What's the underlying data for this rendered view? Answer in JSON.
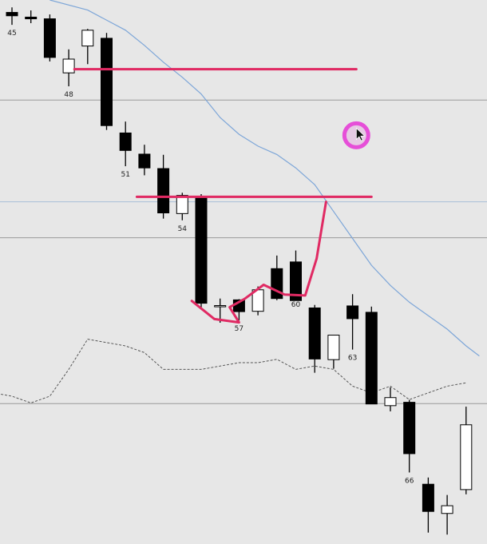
{
  "chart_data": {
    "type": "candlestick",
    "title": "",
    "xlabel": "",
    "ylabel": "",
    "grid": false,
    "price_range": [
      0,
      100
    ],
    "bar_labels": [
      {
        "bar": 45,
        "text": "45"
      },
      {
        "bar": 48,
        "text": "48"
      },
      {
        "bar": 51,
        "text": "51"
      },
      {
        "bar": 54,
        "text": "54"
      },
      {
        "bar": 57,
        "text": "57"
      },
      {
        "bar": 60,
        "text": "60"
      },
      {
        "bar": 63,
        "text": "63"
      },
      {
        "bar": 66,
        "text": "66"
      }
    ],
    "candles": [
      {
        "bar": 45,
        "open": 96.3,
        "high": 97.8,
        "low": 92.6,
        "close": 95.3
      },
      {
        "bar": 46,
        "open": 94.9,
        "high": 96.9,
        "low": 93.1,
        "close": 94.4
      },
      {
        "bar": 47,
        "open": 94.4,
        "high": 95.7,
        "low": 81.7,
        "close": 82.9
      },
      {
        "bar": 48,
        "open": 78.3,
        "high": 85.3,
        "low": 74.3,
        "close": 82.4
      },
      {
        "bar": 49,
        "open": 86.3,
        "high": 91.4,
        "low": 80.9,
        "close": 91.0
      },
      {
        "bar": 50,
        "open": 88.6,
        "high": 90.2,
        "low": 61.3,
        "close": 62.6
      },
      {
        "bar": 51,
        "open": 60.4,
        "high": 63.8,
        "low": 50.5,
        "close": 55.2
      },
      {
        "bar": 52,
        "open": 54.1,
        "high": 56.9,
        "low": 47.8,
        "close": 50.0
      },
      {
        "bar": 53,
        "open": 49.8,
        "high": 53.9,
        "low": 34.9,
        "close": 36.6
      },
      {
        "bar": 54,
        "open": 36.4,
        "high": 42.6,
        "low": 34.4,
        "close": 41.8
      },
      {
        "bar": 55,
        "open": 41.1,
        "high": 42.2,
        "low": 8.5,
        "close": 9.7
      },
      {
        "bar": 56,
        "open": 9.0,
        "high": 11.1,
        "low": 3.9,
        "close": 9.0
      },
      {
        "bar": 57,
        "open": 10.7,
        "high": 10.9,
        "low": 4.6,
        "close": 7.2
      },
      {
        "bar": 58,
        "open": 7.3,
        "high": 14.7,
        "low": 6.1,
        "close": 13.7
      },
      {
        "bar": 59,
        "open": 20.0,
        "high": 23.9,
        "low": 10.6,
        "close": 11.1
      },
      {
        "bar": 60,
        "open": 22.0,
        "high": 25.4,
        "low": 11.8,
        "close": 10.5
      },
      {
        "bar": 61,
        "open": 8.3,
        "high": 9.2,
        "low": -11.0,
        "close": -6.9
      },
      {
        "bar": 62,
        "open": -7.1,
        "high": -0.4,
        "low": -9.8,
        "close": 0.2
      },
      {
        "bar": 63,
        "open": 8.9,
        "high": 12.4,
        "low": -4.1,
        "close": 5.1
      },
      {
        "bar": 64,
        "open": 7.0,
        "high": 8.7,
        "low": -19.5,
        "close": -20.3
      },
      {
        "bar": 65,
        "open": -20.8,
        "high": -15.3,
        "low": -22.5,
        "close": -18.4
      },
      {
        "bar": 66,
        "open": -19.8,
        "high": -19.1,
        "low": -40.7,
        "close": -35.1
      },
      {
        "bar": 67,
        "open": -44.2,
        "high": -42.2,
        "low": -58.6,
        "close": -52.3
      },
      {
        "bar": 68,
        "open": -52.9,
        "high": -47.4,
        "low": -59.2,
        "close": -50.6
      },
      {
        "bar": 69,
        "open": -45.8,
        "high": -21.1,
        "low": -47.2,
        "close": -26.5
      }
    ],
    "series": [
      {
        "kind": "moving-average",
        "color": "#7da6d8",
        "points": [
          [
            47,
            100
          ],
          [
            49,
            97
          ],
          [
            51,
            91
          ],
          [
            52,
            86.5
          ],
          [
            53,
            81.5
          ],
          [
            54,
            77
          ],
          [
            55,
            72
          ],
          [
            56,
            65
          ],
          [
            57,
            60
          ],
          [
            58,
            56.5
          ],
          [
            59,
            54
          ],
          [
            60,
            50
          ],
          [
            61,
            45
          ],
          [
            62,
            37
          ],
          [
            63,
            29
          ],
          [
            64,
            21
          ],
          [
            65,
            15
          ],
          [
            66,
            10
          ],
          [
            67,
            6
          ],
          [
            68,
            2
          ],
          [
            69,
            -3
          ],
          [
            69.7,
            -6
          ]
        ]
      },
      {
        "kind": "indicator",
        "color": "#555555",
        "points": [
          [
            44,
            -17
          ],
          [
            45,
            -18
          ],
          [
            46,
            -20
          ],
          [
            47,
            -18
          ],
          [
            48,
            -10
          ],
          [
            49,
            -1
          ],
          [
            50,
            -2
          ],
          [
            51,
            -3
          ],
          [
            52,
            -5
          ],
          [
            53,
            -10
          ],
          [
            54,
            -10
          ],
          [
            55,
            -10
          ],
          [
            56,
            -9
          ],
          [
            57,
            -8
          ],
          [
            58,
            -8
          ],
          [
            59,
            -7
          ],
          [
            60,
            -10
          ],
          [
            61,
            -9
          ],
          [
            62,
            -10
          ],
          [
            63,
            -15
          ],
          [
            64,
            -17
          ],
          [
            65,
            -15
          ],
          [
            66,
            -19
          ],
          [
            67,
            -17
          ],
          [
            68,
            -15
          ],
          [
            69,
            -14
          ]
        ]
      }
    ],
    "horizontal_lines": [
      {
        "kind": "grid",
        "color": "#9a9a9a",
        "y": 70.2
      },
      {
        "kind": "grid",
        "color": "#a9bfd8",
        "y": 39.9
      },
      {
        "kind": "grid",
        "color": "#9a9a9a",
        "y": 29.2
      },
      {
        "kind": "grid",
        "color": "#9a9a9a",
        "y": -20.2
      }
    ],
    "annotations": [
      {
        "kind": "level",
        "color": "#e02a63",
        "x": [
          48.3,
          63.2
        ],
        "y": 79.4
      },
      {
        "kind": "level",
        "color": "#e02a63",
        "x": [
          51.6,
          64.0
        ],
        "y": 41.4
      },
      {
        "kind": "drawn-path",
        "color": "#e02a63",
        "points": [
          [
            54.5,
            10.4
          ],
          [
            55.7,
            5.0
          ],
          [
            57,
            4.0
          ],
          [
            56.5,
            8.5
          ],
          [
            57.3,
            11
          ],
          [
            58.3,
            15.2
          ],
          [
            59.4,
            12.3
          ],
          [
            60.5,
            12.0
          ],
          [
            61.1,
            23
          ],
          [
            61.6,
            39.9
          ]
        ]
      },
      {
        "kind": "cursor-highlight",
        "color": "#e64fd8",
        "at": [
          63.2,
          59.7
        ]
      }
    ]
  }
}
